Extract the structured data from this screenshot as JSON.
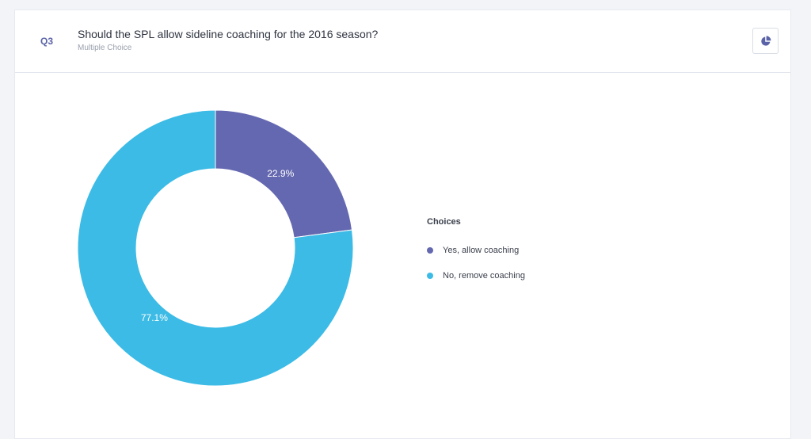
{
  "question": {
    "number": "Q3",
    "title": "Should the SPL allow sideline coaching for the 2016 season?",
    "type": "Multiple Choice",
    "chart_toggle_icon": "pie-chart-icon"
  },
  "colors": {
    "yes": "#6468b0",
    "no": "#3bbbe6",
    "accent": "#5a63a8"
  },
  "legend": {
    "title": "Choices"
  },
  "chart_data": {
    "type": "pie",
    "style": "donut",
    "legend_title": "Choices",
    "legend_position": "right",
    "slices": [
      {
        "label": "Yes, allow coaching",
        "value": 22.9,
        "display": "22.9%",
        "color": "#6468b0"
      },
      {
        "label": "No, remove coaching",
        "value": 77.1,
        "display": "77.1%",
        "color": "#3bbbe6"
      }
    ]
  }
}
